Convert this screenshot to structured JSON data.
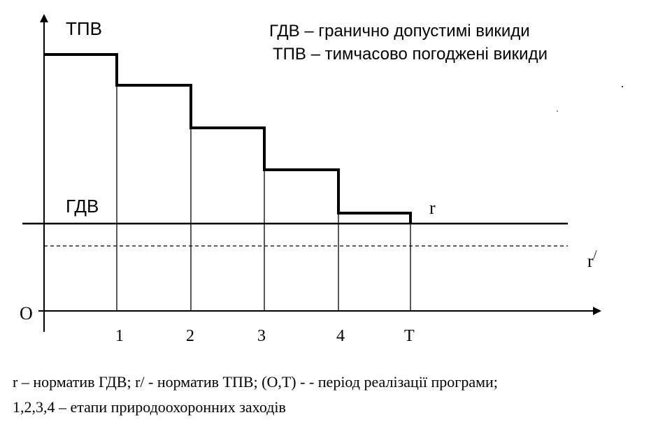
{
  "y_axis_label": "ТПВ",
  "legend": {
    "line1": "ГДВ – гранично допустимі викиди",
    "line2": "ТПВ – тимчасово погоджені викиди"
  },
  "gdv_label": "ГДВ",
  "r_label": "r",
  "r_prime_label": "r/",
  "origin_label": "O",
  "x_ticks": [
    "1",
    "2",
    "3",
    "4",
    "T"
  ],
  "caption": {
    "line1": "r – норматив ГДВ;  r/ - норматив ТПВ; (O,T) - - період реалізації програми;",
    "line2": "1,2,3,4 – етапи природоохоронних заходів"
  },
  "steps": [
    {
      "from": "O",
      "to": "1",
      "level": 5
    },
    {
      "from": "1",
      "to": "2",
      "level": 4.25
    },
    {
      "from": "2",
      "to": "3",
      "level": 3.25
    },
    {
      "from": "3",
      "to": "4",
      "level": 2.25
    },
    {
      "from": "4",
      "to": "T",
      "level": 0.25
    }
  ],
  "gdv_level": 0,
  "r_prime_level": -0.5,
  "colors": {
    "ink": "#000000",
    "background": "#ffffff"
  }
}
